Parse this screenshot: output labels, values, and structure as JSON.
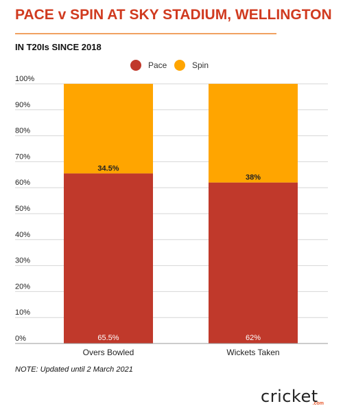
{
  "title": "PACE v SPIN AT SKY STADIUM, WELLINGTON",
  "subtitle": "IN T20Is SINCE 2018",
  "note": "NOTE: Updated until 2 March 2021",
  "logo": {
    "wordmark": "cricket",
    "sub": ".com"
  },
  "colors": {
    "title": "#d03a1f",
    "pace": "#c0392b",
    "spin": "#ffa500",
    "grid": "#d6d6d6"
  },
  "chart_data": {
    "type": "bar",
    "stacked": true,
    "categories": [
      "Overs Bowled",
      "Wickets Taken"
    ],
    "series": [
      {
        "name": "Pace",
        "values": [
          65.5,
          62
        ],
        "labels": [
          "65.5%",
          "62%"
        ],
        "color": "#c0392b"
      },
      {
        "name": "Spin",
        "values": [
          34.5,
          38
        ],
        "labels": [
          "34.5%",
          "38%"
        ],
        "color": "#ffa500"
      }
    ],
    "ylim": [
      0,
      100
    ],
    "yticks": [
      "0%",
      "10%",
      "20%",
      "30%",
      "40%",
      "50%",
      "60%",
      "70%",
      "80%",
      "90%",
      "100%"
    ],
    "grid": true,
    "legend": "top-center"
  }
}
